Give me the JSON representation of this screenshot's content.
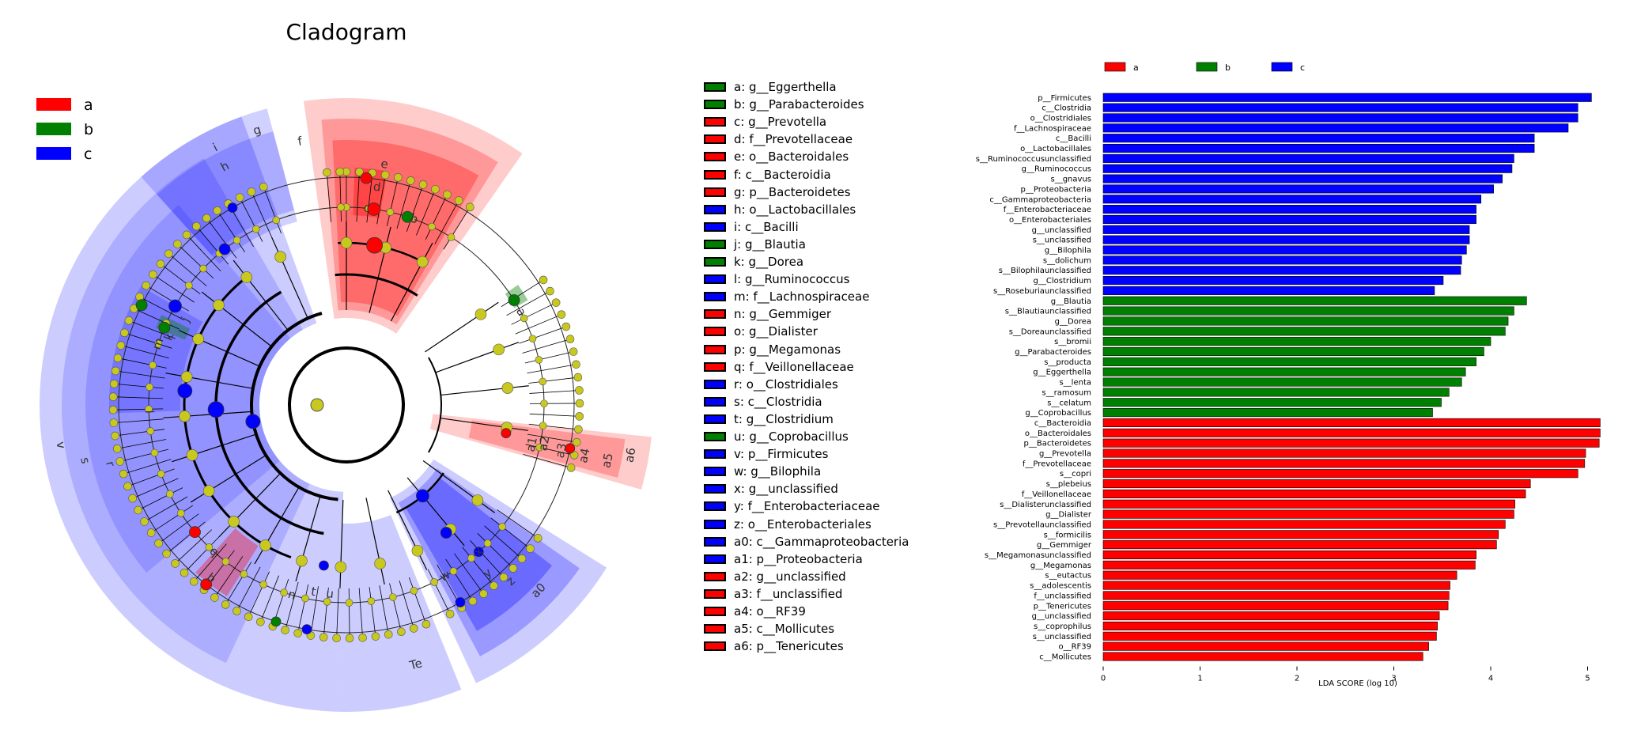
{
  "colors": {
    "a": "#ff0000",
    "b": "#008000",
    "c": "#0000ff",
    "node": "#c8c81e"
  },
  "cladogram": {
    "title": "Cladogram",
    "legend": [
      {
        "key": "a",
        "label": "a"
      },
      {
        "key": "b",
        "label": "b"
      },
      {
        "key": "c",
        "label": "c"
      }
    ]
  },
  "cladogram_labels": [
    {
      "text": "g",
      "ang": -18,
      "r": 365
    },
    {
      "text": "f",
      "ang": -10,
      "r": 338
    },
    {
      "text": "e",
      "ang": 9,
      "r": 308
    },
    {
      "text": "d",
      "ang": 8,
      "r": 278
    },
    {
      "text": "c",
      "ang": 6,
      "r": 250
    },
    {
      "text": "b",
      "ang": 20,
      "r": 250
    },
    {
      "text": "a",
      "ang": 62,
      "r": 250
    },
    {
      "text": "a6",
      "ang": 100,
      "r": 365
    },
    {
      "text": "a5",
      "ang": 102,
      "r": 338
    },
    {
      "text": "a4",
      "ang": 102,
      "r": 308
    },
    {
      "text": "a3",
      "ang": 102,
      "r": 278
    },
    {
      "text": "a2",
      "ang": 101,
      "r": 255
    },
    {
      "text": "a1",
      "ang": 102,
      "r": 240
    },
    {
      "text": "a0",
      "ang": 134,
      "r": 338
    },
    {
      "text": "z",
      "ang": 137,
      "r": 305
    },
    {
      "text": "y",
      "ang": 140,
      "r": 278
    },
    {
      "text": "x",
      "ang": 138,
      "r": 250
    },
    {
      "text": "w",
      "ang": 150,
      "r": 250
    },
    {
      "text": "u",
      "ang": 185,
      "r": 240
    },
    {
      "text": "t",
      "ang": 190,
      "r": 240
    },
    {
      "text": "Te",
      "ang": 165,
      "r": 340
    },
    {
      "text": "n",
      "ang": 196,
      "r": 250
    },
    {
      "text": "b",
      "ang": 218,
      "r": 278
    },
    {
      "text": "q",
      "ang": 222,
      "r": 250
    },
    {
      "text": "v",
      "ang": 262,
      "r": 365
    },
    {
      "text": "s",
      "ang": 258,
      "r": 338
    },
    {
      "text": "r",
      "ang": 256,
      "r": 308
    },
    {
      "text": "l",
      "ang": 268,
      "r": 250
    },
    {
      "text": "m",
      "ang": 288,
      "r": 250
    },
    {
      "text": "k",
      "ang": 291,
      "r": 240
    },
    {
      "text": "j",
      "ang": 298,
      "r": 230
    },
    {
      "text": "i",
      "ang": -27,
      "r": 365
    },
    {
      "text": "h",
      "ang": -27,
      "r": 338
    }
  ],
  "key": [
    {
      "id": "a",
      "color": "b",
      "text": "a: g__Eggerthella"
    },
    {
      "id": "b",
      "color": "b",
      "text": "b: g__Parabacteroides"
    },
    {
      "id": "c",
      "color": "a",
      "text": "c: g__Prevotella"
    },
    {
      "id": "d",
      "color": "a",
      "text": "d: f__Prevotellaceae"
    },
    {
      "id": "e",
      "color": "a",
      "text": "e: o__Bacteroidales"
    },
    {
      "id": "f",
      "color": "a",
      "text": "f: c__Bacteroidia"
    },
    {
      "id": "g",
      "color": "a",
      "text": "g: p__Bacteroidetes"
    },
    {
      "id": "h",
      "color": "c",
      "text": "h: o__Lactobacillales"
    },
    {
      "id": "i",
      "color": "c",
      "text": "i: c__Bacilli"
    },
    {
      "id": "j",
      "color": "b",
      "text": "j: g__Blautia"
    },
    {
      "id": "k",
      "color": "b",
      "text": "k: g__Dorea"
    },
    {
      "id": "l",
      "color": "c",
      "text": "l: g__Ruminococcus"
    },
    {
      "id": "m",
      "color": "c",
      "text": "m: f__Lachnospiraceae"
    },
    {
      "id": "n",
      "color": "a",
      "text": "n: g__Gemmiger"
    },
    {
      "id": "o",
      "color": "a",
      "text": "o: g__Dialister"
    },
    {
      "id": "p",
      "color": "a",
      "text": "p: g__Megamonas"
    },
    {
      "id": "q",
      "color": "a",
      "text": "q: f__Veillonellaceae"
    },
    {
      "id": "r",
      "color": "c",
      "text": "r: o__Clostridiales"
    },
    {
      "id": "s",
      "color": "c",
      "text": "s: c__Clostridia"
    },
    {
      "id": "t",
      "color": "c",
      "text": "t: g__Clostridium"
    },
    {
      "id": "u",
      "color": "b",
      "text": "u: g__Coprobacillus"
    },
    {
      "id": "v",
      "color": "c",
      "text": "v: p__Firmicutes"
    },
    {
      "id": "w",
      "color": "c",
      "text": "w: g__Bilophila"
    },
    {
      "id": "x",
      "color": "c",
      "text": "x: g__unclassified"
    },
    {
      "id": "y",
      "color": "c",
      "text": "y: f__Enterobacteriaceae"
    },
    {
      "id": "z",
      "color": "c",
      "text": "z: o__Enterobacteriales"
    },
    {
      "id": "a0",
      "color": "c",
      "text": "a0: c__Gammaproteobacteria"
    },
    {
      "id": "a1",
      "color": "c",
      "text": "a1: p__Proteobacteria"
    },
    {
      "id": "a2",
      "color": "a",
      "text": "a2: g__unclassified"
    },
    {
      "id": "a3",
      "color": "a",
      "text": "a3: f__unclassified"
    },
    {
      "id": "a4",
      "color": "a",
      "text": "a4: o__RF39"
    },
    {
      "id": "a5",
      "color": "a",
      "text": "a5: c__Mollicutes"
    },
    {
      "id": "a6",
      "color": "a",
      "text": "a6: p__Tenericutes"
    }
  ],
  "chart_data": {
    "type": "bar",
    "orientation": "horizontal",
    "title": "",
    "xlabel": "LDA SCORE (log 10)",
    "ylabel": "",
    "xlim": [
      0,
      5.3
    ],
    "xticks": [
      0,
      1,
      2,
      3,
      4,
      5
    ],
    "grid": false,
    "legend_position": "top",
    "series": [
      {
        "name": "a",
        "color": "#ff0000"
      },
      {
        "name": "b",
        "color": "#008000"
      },
      {
        "name": "c",
        "color": "#0000ff"
      }
    ],
    "bars": [
      {
        "label": "p__Firmicutes",
        "value": 5.04,
        "group": "c"
      },
      {
        "label": "c__Clostridia",
        "value": 4.9,
        "group": "c"
      },
      {
        "label": "o__Clostridiales",
        "value": 4.9,
        "group": "c"
      },
      {
        "label": "f__Lachnospiraceae",
        "value": 4.8,
        "group": "c"
      },
      {
        "label": "c__Bacilli",
        "value": 4.45,
        "group": "c"
      },
      {
        "label": "o__Lactobacillales",
        "value": 4.45,
        "group": "c"
      },
      {
        "label": "s__Ruminococcusunclassified",
        "value": 4.24,
        "group": "c"
      },
      {
        "label": "g__Ruminococcus",
        "value": 4.22,
        "group": "c"
      },
      {
        "label": "s__gnavus",
        "value": 4.12,
        "group": "c"
      },
      {
        "label": "p__Proteobacteria",
        "value": 4.03,
        "group": "c"
      },
      {
        "label": "c__Gammaproteobacteria",
        "value": 3.9,
        "group": "c"
      },
      {
        "label": "f__Enterobacteriaceae",
        "value": 3.85,
        "group": "c"
      },
      {
        "label": "o__Enterobacteriales",
        "value": 3.85,
        "group": "c"
      },
      {
        "label": "g__unclassified",
        "value": 3.78,
        "group": "c"
      },
      {
        "label": "s__unclassified",
        "value": 3.78,
        "group": "c"
      },
      {
        "label": "g__Bilophila",
        "value": 3.75,
        "group": "c"
      },
      {
        "label": "s__dolichum",
        "value": 3.7,
        "group": "c"
      },
      {
        "label": "s__Bilophilaunclassified",
        "value": 3.69,
        "group": "c"
      },
      {
        "label": "g__Clostridium",
        "value": 3.51,
        "group": "c"
      },
      {
        "label": "s__Roseburiaunclassified",
        "value": 3.42,
        "group": "c"
      },
      {
        "label": "g__Blautia",
        "value": 4.37,
        "group": "b"
      },
      {
        "label": "s__Blautiaunclassified",
        "value": 4.24,
        "group": "b"
      },
      {
        "label": "g__Dorea",
        "value": 4.18,
        "group": "b"
      },
      {
        "label": "s__Doreaunclassified",
        "value": 4.15,
        "group": "b"
      },
      {
        "label": "s__bromii",
        "value": 4.0,
        "group": "b"
      },
      {
        "label": "g__Parabacteroides",
        "value": 3.93,
        "group": "b"
      },
      {
        "label": "s__producta",
        "value": 3.85,
        "group": "b"
      },
      {
        "label": "g__Eggerthella",
        "value": 3.74,
        "group": "b"
      },
      {
        "label": "s__lenta",
        "value": 3.7,
        "group": "b"
      },
      {
        "label": "s__ramosum",
        "value": 3.57,
        "group": "b"
      },
      {
        "label": "s__celatum",
        "value": 3.49,
        "group": "b"
      },
      {
        "label": "g__Coprobacillus",
        "value": 3.4,
        "group": "b"
      },
      {
        "label": "c__Bacteroidia",
        "value": 5.13,
        "group": "a"
      },
      {
        "label": "o__Bacteroidales",
        "value": 5.13,
        "group": "a"
      },
      {
        "label": "p__Bacteroidetes",
        "value": 5.12,
        "group": "a"
      },
      {
        "label": "g__Prevotella",
        "value": 4.98,
        "group": "a"
      },
      {
        "label": "f__Prevotellaceae",
        "value": 4.97,
        "group": "a"
      },
      {
        "label": "s__copri",
        "value": 4.9,
        "group": "a"
      },
      {
        "label": "s__plebeius",
        "value": 4.41,
        "group": "a"
      },
      {
        "label": "f__Veillonellaceae",
        "value": 4.36,
        "group": "a"
      },
      {
        "label": "s__Dialisterunclassified",
        "value": 4.25,
        "group": "a"
      },
      {
        "label": "g__Dialister",
        "value": 4.24,
        "group": "a"
      },
      {
        "label": "s__Prevotellaunclassified",
        "value": 4.15,
        "group": "a"
      },
      {
        "label": "s__formicilis",
        "value": 4.08,
        "group": "a"
      },
      {
        "label": "g__Gemmiger",
        "value": 4.06,
        "group": "a"
      },
      {
        "label": "s__Megamonasunclassified",
        "value": 3.85,
        "group": "a"
      },
      {
        "label": "g__Megamonas",
        "value": 3.84,
        "group": "a"
      },
      {
        "label": "s__eutactus",
        "value": 3.65,
        "group": "a"
      },
      {
        "label": "s__adolescentis",
        "value": 3.58,
        "group": "a"
      },
      {
        "label": "f__unclassified",
        "value": 3.57,
        "group": "a"
      },
      {
        "label": "p__Tenericutes",
        "value": 3.56,
        "group": "a"
      },
      {
        "label": "g__unclassified",
        "value": 3.47,
        "group": "a"
      },
      {
        "label": "s__coprophilus",
        "value": 3.45,
        "group": "a"
      },
      {
        "label": "s__unclassified",
        "value": 3.44,
        "group": "a"
      },
      {
        "label": "o__RF39",
        "value": 3.36,
        "group": "a"
      },
      {
        "label": "c__Mollicutes",
        "value": 3.3,
        "group": "a"
      }
    ]
  }
}
